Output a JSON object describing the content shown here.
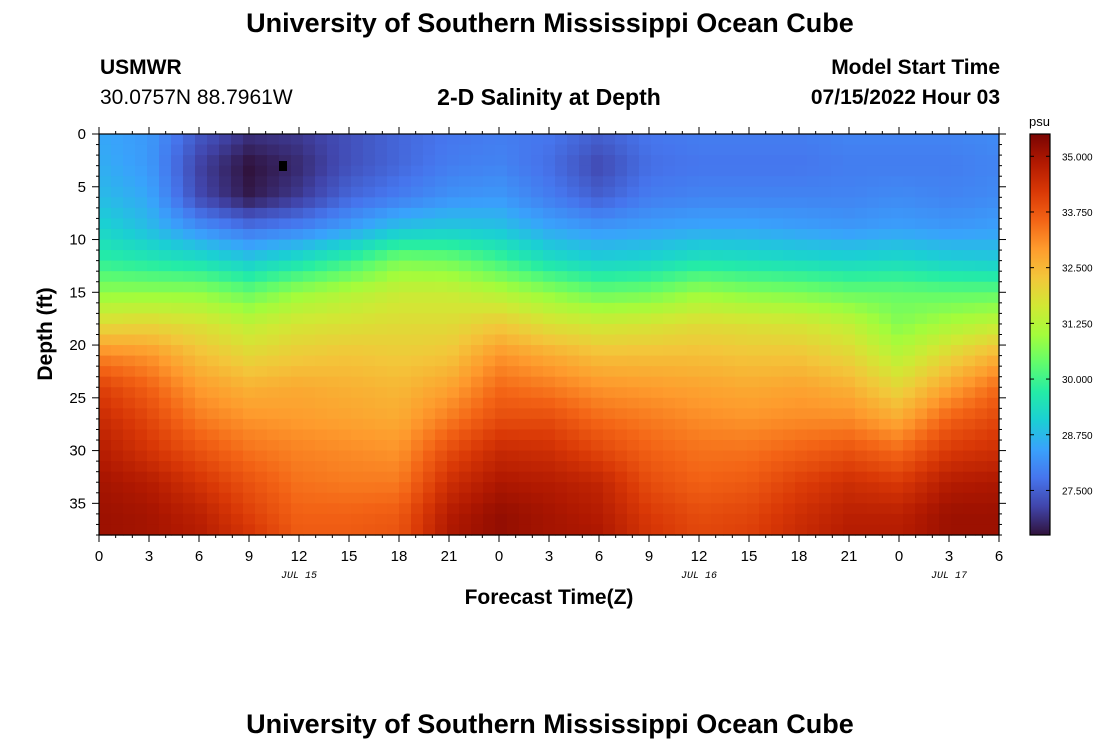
{
  "header": {
    "title": "University of Southern Mississippi Ocean Cube",
    "station": "USMWR",
    "coords": "30.0757N  88.7961W",
    "subtitle": "2-D Salinity at Depth",
    "model_label": "Model Start Time",
    "model_time": "07/15/2022 Hour 03"
  },
  "footer": {
    "title": "University of Southern Mississippi Ocean Cube"
  },
  "chart_data": {
    "type": "heatmap",
    "title": "2-D Salinity at Depth",
    "xlabel": "Forecast Time(Z)",
    "ylabel": "Depth (ft)",
    "x_tick_labels": [
      "0",
      "3",
      "6",
      "9",
      "12",
      "15",
      "18",
      "21",
      "0",
      "3",
      "6",
      "9",
      "12",
      "15",
      "18",
      "21",
      "0",
      "3",
      "6"
    ],
    "x_ticks_hours": [
      0,
      3,
      6,
      9,
      12,
      15,
      18,
      21,
      24,
      27,
      30,
      33,
      36,
      39,
      42,
      45,
      48,
      51,
      54
    ],
    "date_labels": [
      {
        "label": "JUL 15",
        "hour": 12
      },
      {
        "label": "JUL 16",
        "hour": 36
      },
      {
        "label": "JUL 17",
        "hour": 51
      }
    ],
    "xlim": [
      0,
      54
    ],
    "y_tick_labels": [
      "0",
      "5",
      "10",
      "15",
      "20",
      "25",
      "30",
      "35"
    ],
    "y_ticks": [
      0,
      5,
      10,
      15,
      20,
      25,
      30,
      35
    ],
    "ylim": [
      0,
      38
    ],
    "y_inverted": true,
    "colorbar": {
      "unit": "psu",
      "range": [
        26.5,
        35.5
      ],
      "tick_values": [
        35.0,
        33.75,
        32.5,
        31.25,
        30.0,
        28.75,
        27.5
      ],
      "tick_labels": [
        "35.000",
        "33.750",
        "32.500",
        "31.250",
        "30.000",
        "28.750",
        "27.500"
      ],
      "colormap": [
        "#30123b",
        "#4145ab",
        "#4675ed",
        "#39a2fc",
        "#1bcfd4",
        "#24eca6",
        "#61fc6c",
        "#a4fc3b",
        "#d1e834",
        "#f3c63a",
        "#fe9b2d",
        "#f36315",
        "#d93806",
        "#b11901",
        "#7a0402"
      ]
    },
    "salinity_profiles": {
      "depths_ft": [
        0,
        3,
        6,
        9,
        12,
        15,
        18,
        21,
        24,
        27,
        30,
        33,
        36,
        38
      ],
      "profiles": [
        {
          "hour": 0,
          "values": [
            28.5,
            28.6,
            28.8,
            29.2,
            29.8,
            30.8,
            31.9,
            33.2,
            34.1,
            34.5,
            34.8,
            35.0,
            35.1,
            35.1
          ]
        },
        {
          "hour": 3,
          "values": [
            28.3,
            28.3,
            28.5,
            28.8,
            29.6,
            30.8,
            32.0,
            33.0,
            33.6,
            34.0,
            34.3,
            34.8,
            35.0,
            35.0
          ]
        },
        {
          "hour": 6,
          "values": [
            27.4,
            27.1,
            27.2,
            28.2,
            29.4,
            30.8,
            31.8,
            32.4,
            32.9,
            33.3,
            33.8,
            34.3,
            34.7,
            34.8
          ]
        },
        {
          "hour": 9,
          "values": [
            26.9,
            26.5,
            26.6,
            27.8,
            29.0,
            30.4,
            31.4,
            32.0,
            32.6,
            33.0,
            33.4,
            33.8,
            34.1,
            34.3
          ]
        },
        {
          "hour": 12,
          "values": [
            27.0,
            26.8,
            27.0,
            28.0,
            29.4,
            30.9,
            31.7,
            32.2,
            32.7,
            32.9,
            33.2,
            33.4,
            33.6,
            33.7
          ]
        },
        {
          "hour": 15,
          "values": [
            27.3,
            27.3,
            27.6,
            28.4,
            29.9,
            31.2,
            31.8,
            32.3,
            32.6,
            32.8,
            33.1,
            33.3,
            33.6,
            33.7
          ]
        },
        {
          "hour": 18,
          "values": [
            27.6,
            27.6,
            27.9,
            28.9,
            30.6,
            31.5,
            31.9,
            32.2,
            32.5,
            32.7,
            33.0,
            33.3,
            33.7,
            33.8
          ]
        },
        {
          "hour": 21,
          "values": [
            27.8,
            27.9,
            28.2,
            29.0,
            30.5,
            31.5,
            31.9,
            32.3,
            32.8,
            33.3,
            33.9,
            34.4,
            34.8,
            34.9
          ]
        },
        {
          "hour": 24,
          "values": [
            27.9,
            28.0,
            28.3,
            28.9,
            30.0,
            31.2,
            32.2,
            33.0,
            33.5,
            33.9,
            34.5,
            34.9,
            35.2,
            35.2
          ]
        },
        {
          "hour": 27,
          "values": [
            27.8,
            27.7,
            27.9,
            28.5,
            29.4,
            30.8,
            31.8,
            32.7,
            33.3,
            33.9,
            34.4,
            34.8,
            35.0,
            35.0
          ]
        },
        {
          "hour": 30,
          "values": [
            27.5,
            27.2,
            27.5,
            28.3,
            29.1,
            30.4,
            31.6,
            32.4,
            33.0,
            33.5,
            34.0,
            34.6,
            34.8,
            34.9
          ]
        },
        {
          "hour": 33,
          "values": [
            27.8,
            27.7,
            27.9,
            28.4,
            29.2,
            30.5,
            31.7,
            32.4,
            32.9,
            33.3,
            33.6,
            33.9,
            34.2,
            34.3
          ]
        },
        {
          "hour": 36,
          "values": [
            27.9,
            27.8,
            28.0,
            28.5,
            29.5,
            30.9,
            31.9,
            32.4,
            32.8,
            33.1,
            33.4,
            33.6,
            33.9,
            34.0
          ]
        },
        {
          "hour": 39,
          "values": [
            27.9,
            27.8,
            28.0,
            28.5,
            29.4,
            30.7,
            31.8,
            32.3,
            32.7,
            33.0,
            33.4,
            33.7,
            34.0,
            34.1
          ]
        },
        {
          "hour": 42,
          "values": [
            27.9,
            27.8,
            28.0,
            28.4,
            29.3,
            30.6,
            31.7,
            32.3,
            32.8,
            33.1,
            33.6,
            34.1,
            34.4,
            34.5
          ]
        },
        {
          "hour": 45,
          "values": [
            28.0,
            27.9,
            28.0,
            28.3,
            29.2,
            30.4,
            31.4,
            32.0,
            32.6,
            33.1,
            33.8,
            34.4,
            34.7,
            34.8
          ]
        },
        {
          "hour": 48,
          "values": [
            28.0,
            27.9,
            28.1,
            28.4,
            29.3,
            30.4,
            30.7,
            31.3,
            32.0,
            32.7,
            33.5,
            34.2,
            34.7,
            34.8
          ]
        },
        {
          "hour": 51,
          "values": [
            28.0,
            27.9,
            28.0,
            28.3,
            29.1,
            30.3,
            31.1,
            32.0,
            32.8,
            33.6,
            34.2,
            34.8,
            35.1,
            35.1
          ]
        },
        {
          "hour": 54,
          "values": [
            28.1,
            28.0,
            28.1,
            28.4,
            29.0,
            30.3,
            31.4,
            32.6,
            33.5,
            34.0,
            34.4,
            34.9,
            35.1,
            35.1
          ]
        }
      ]
    }
  }
}
